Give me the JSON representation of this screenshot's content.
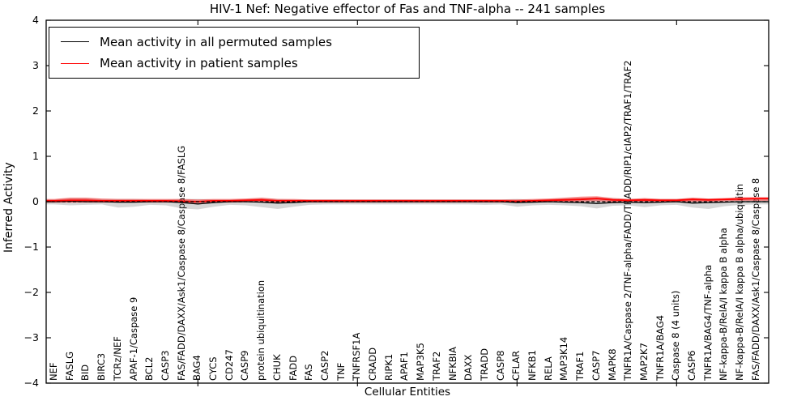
{
  "chart_data": {
    "type": "line",
    "title": "HIV-1 Nef: Negative effector of Fas and TNF-alpha -- 241 samples",
    "xlabel": "Cellular Entities",
    "ylabel": "Inferred Activity",
    "ylim": [
      -4,
      4
    ],
    "ytick_labels": [
      "4",
      "3",
      "2",
      "1",
      "0",
      "−1",
      "−2",
      "−3",
      "−4"
    ],
    "x_major_tick_indices": [
      10,
      20,
      30,
      40
    ],
    "legend_position": "upper left",
    "grid": false,
    "zero_reference_line": {
      "style": "dashed",
      "color": "#000000",
      "y": 0
    },
    "categories": [
      "NEF",
      "FASLG",
      "BID",
      "BIRC3",
      "TCRz/NEF",
      "APAF-1/Caspase 9",
      "BCL2",
      "CASP3",
      "FAS/FADD/DAXX/Ask1/Caspase 8/Caspase 8/FASLG",
      "BAG4",
      "CYCS",
      "CD247",
      "CASP9",
      "protein ubiquitination",
      "CHUK",
      "FADD",
      "FAS",
      "CASP2",
      "TNF",
      "TNFRSF1A",
      "CRADD",
      "RIPK1",
      "APAF1",
      "MAP3K5",
      "TRAF2",
      "NFKBIA",
      "DAXX",
      "TRADD",
      "CASP8",
      "CFLAR",
      "NFKB1",
      "RELA",
      "MAP3K14",
      "TRAF1",
      "CASP7",
      "MAPK8",
      "TNFR1A/Caspase 2/TNF-alpha/FADD/TRADD/RIP1/cIAP2/TRAF1/TRAF2",
      "MAP2K7",
      "TNFR1A/BAG4",
      "Caspase 8 (4 units)",
      "CASP6",
      "TNFR1A/BAG4/TNF-alpha",
      "NF-kappa-B/RelA/I kappa B alpha",
      "NF-kappa-B/RelA/I kappa B alpha/ubiquitin",
      "FAS/FADD/DAXX/Ask1/Caspase 8/Caspase 8"
    ],
    "series": [
      {
        "name": "Mean activity in all permuted samples",
        "color": "#000000",
        "style": "solid",
        "values": [
          0.0,
          0.01,
          0.0,
          0.0,
          -0.01,
          -0.01,
          0.0,
          0.0,
          -0.02,
          -0.05,
          -0.02,
          0.0,
          0.0,
          -0.01,
          -0.03,
          -0.02,
          0.0,
          0.0,
          0.0,
          0.0,
          0.0,
          0.0,
          0.0,
          0.0,
          0.0,
          0.0,
          0.0,
          0.0,
          0.0,
          -0.02,
          -0.01,
          0.0,
          -0.01,
          -0.02,
          -0.04,
          -0.02,
          -0.01,
          -0.02,
          -0.01,
          0.0,
          -0.03,
          -0.02,
          -0.01,
          0.0,
          0.0
        ]
      },
      {
        "name": "Mean activity in patient samples",
        "color": "#ff0000",
        "style": "solid",
        "values": [
          0.02,
          0.03,
          0.03,
          0.02,
          0.02,
          0.02,
          0.02,
          0.02,
          0.01,
          0.0,
          0.02,
          0.02,
          0.03,
          0.04,
          0.02,
          0.02,
          0.02,
          0.02,
          0.02,
          0.02,
          0.02,
          0.02,
          0.02,
          0.02,
          0.02,
          0.02,
          0.02,
          0.02,
          0.02,
          0.01,
          0.02,
          0.03,
          0.04,
          0.05,
          0.07,
          0.04,
          0.03,
          0.04,
          0.03,
          0.03,
          0.05,
          0.04,
          0.05,
          0.06,
          0.07
        ]
      }
    ],
    "bands": [
      {
        "name": "permuted samples range",
        "color": "#808080",
        "opacity": 0.32,
        "upper": [
          0.05,
          0.08,
          0.08,
          0.06,
          0.06,
          0.06,
          0.05,
          0.05,
          0.06,
          0.06,
          0.05,
          0.05,
          0.06,
          0.08,
          0.06,
          0.05,
          0.05,
          0.05,
          0.05,
          0.05,
          0.05,
          0.05,
          0.05,
          0.05,
          0.05,
          0.05,
          0.05,
          0.05,
          0.05,
          0.06,
          0.05,
          0.06,
          0.08,
          0.09,
          0.1,
          0.08,
          0.06,
          0.07,
          0.06,
          0.06,
          0.08,
          0.07,
          0.07,
          0.08,
          0.08
        ],
        "lower": [
          -0.06,
          -0.08,
          -0.07,
          -0.06,
          -0.13,
          -0.11,
          -0.07,
          -0.08,
          -0.15,
          -0.17,
          -0.11,
          -0.07,
          -0.08,
          -0.12,
          -0.16,
          -0.11,
          -0.07,
          -0.06,
          -0.06,
          -0.06,
          -0.06,
          -0.06,
          -0.06,
          -0.06,
          -0.06,
          -0.06,
          -0.06,
          -0.07,
          -0.06,
          -0.11,
          -0.08,
          -0.07,
          -0.08,
          -0.1,
          -0.15,
          -0.09,
          -0.08,
          -0.12,
          -0.08,
          -0.07,
          -0.13,
          -0.16,
          -0.1,
          -0.07,
          -0.06
        ]
      },
      {
        "name": "patient samples range",
        "color": "#ff0000",
        "opacity": 0.42,
        "upper": [
          0.06,
          0.09,
          0.09,
          0.07,
          0.06,
          0.06,
          0.06,
          0.06,
          0.06,
          0.05,
          0.06,
          0.06,
          0.07,
          0.09,
          0.06,
          0.06,
          0.05,
          0.05,
          0.05,
          0.05,
          0.05,
          0.05,
          0.05,
          0.05,
          0.05,
          0.05,
          0.05,
          0.05,
          0.05,
          0.05,
          0.06,
          0.07,
          0.09,
          0.11,
          0.12,
          0.08,
          0.06,
          0.08,
          0.06,
          0.06,
          0.09,
          0.07,
          0.08,
          0.1,
          0.1
        ],
        "lower": [
          -0.02,
          -0.02,
          -0.02,
          -0.02,
          -0.02,
          -0.02,
          -0.02,
          -0.02,
          -0.02,
          -0.03,
          -0.02,
          -0.02,
          -0.01,
          -0.01,
          -0.02,
          -0.02,
          -0.02,
          -0.02,
          -0.02,
          -0.02,
          -0.02,
          -0.02,
          -0.02,
          -0.02,
          -0.02,
          -0.02,
          -0.02,
          -0.02,
          -0.02,
          -0.02,
          -0.02,
          -0.01,
          0.0,
          0.0,
          0.01,
          -0.01,
          -0.01,
          0.0,
          -0.01,
          -0.01,
          0.0,
          0.0,
          0.01,
          0.02,
          0.02
        ]
      }
    ]
  }
}
